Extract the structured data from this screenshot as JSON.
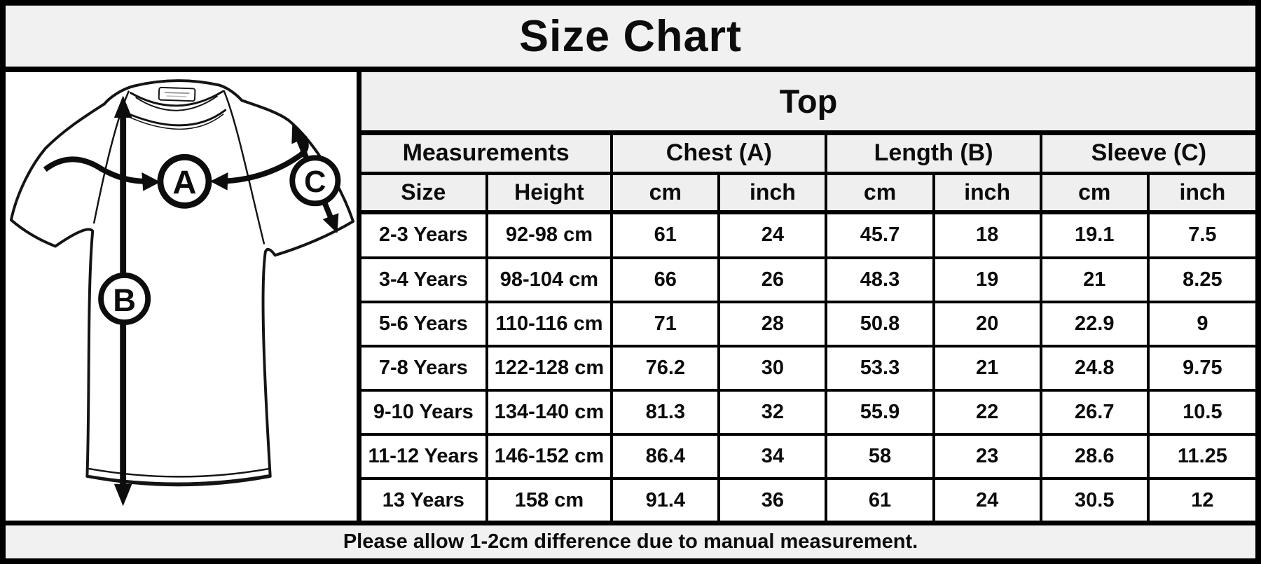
{
  "title": "Size Chart",
  "diagram": {
    "chest_label": "A",
    "length_label": "B",
    "sleeve_label": "C"
  },
  "chart_data": {
    "type": "table",
    "title": "Size Chart",
    "section_title": "Top",
    "column_groups": [
      {
        "label": "Measurements",
        "span": 2
      },
      {
        "label": "Chest (A)",
        "span": 2
      },
      {
        "label": "Length (B)",
        "span": 2
      },
      {
        "label": "Sleeve (C)",
        "span": 2
      }
    ],
    "columns": [
      "Size",
      "Height",
      "cm",
      "inch",
      "cm",
      "inch",
      "cm",
      "inch"
    ],
    "rows": [
      [
        "2-3 Years",
        "92-98 cm",
        "61",
        "24",
        "45.7",
        "18",
        "19.1",
        "7.5"
      ],
      [
        "3-4 Years",
        "98-104 cm",
        "66",
        "26",
        "48.3",
        "19",
        "21",
        "8.25"
      ],
      [
        "5-6 Years",
        "110-116 cm",
        "71",
        "28",
        "50.8",
        "20",
        "22.9",
        "9"
      ],
      [
        "7-8 Years",
        "122-128 cm",
        "76.2",
        "30",
        "53.3",
        "21",
        "24.8",
        "9.75"
      ],
      [
        "9-10 Years",
        "134-140 cm",
        "81.3",
        "32",
        "55.9",
        "22",
        "26.7",
        "10.5"
      ],
      [
        "11-12 Years",
        "146-152 cm",
        "86.4",
        "34",
        "58",
        "23",
        "28.6",
        "11.25"
      ],
      [
        "13 Years",
        "158 cm",
        "91.4",
        "36",
        "61",
        "24",
        "30.5",
        "12"
      ]
    ]
  },
  "footer": {
    "note": "Please allow 1-2cm difference due to manual measurement."
  },
  "colors": {
    "band_bg": "#efefef",
    "cell_bg": "#ffffff",
    "border": "#000000",
    "ink": "#111111"
  }
}
